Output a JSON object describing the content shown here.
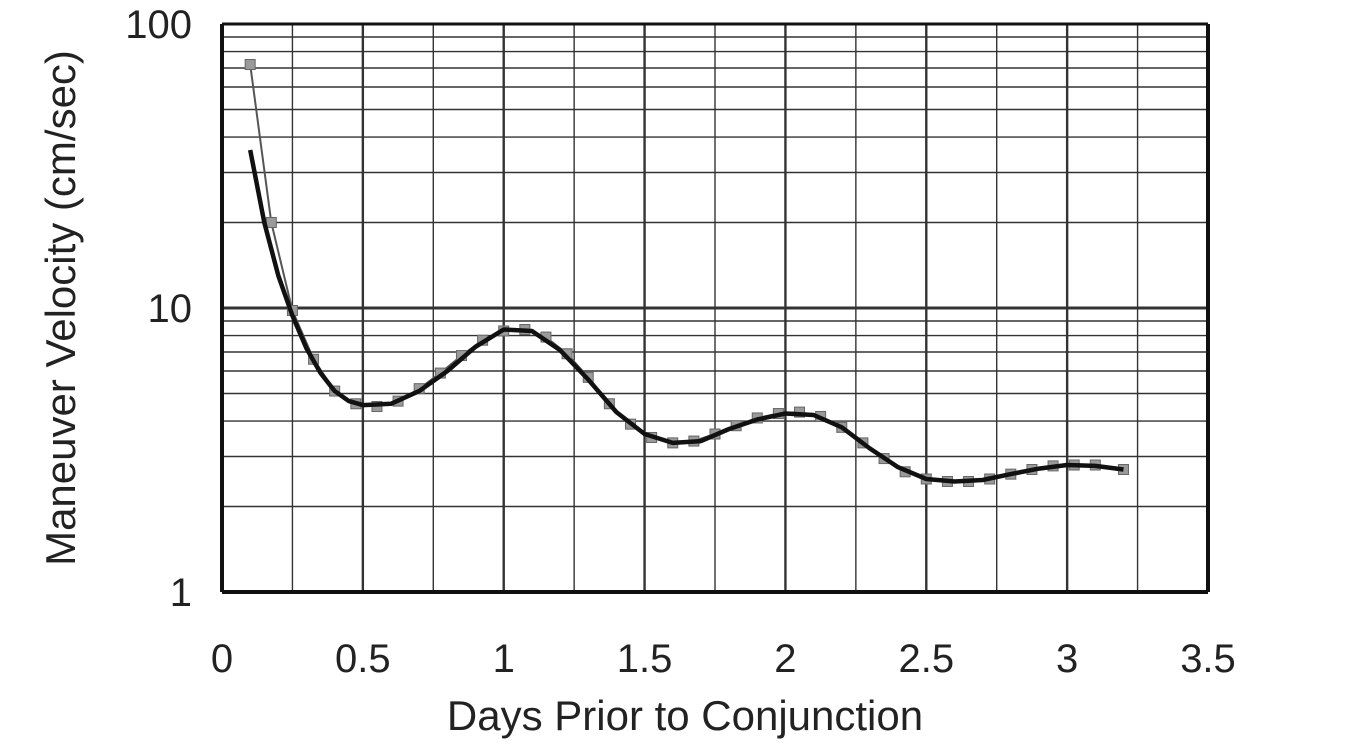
{
  "chart_data": {
    "type": "line",
    "title": "",
    "xlabel": "Days Prior to Conjunction",
    "ylabel": "Maneuver Velocity (cm/sec)",
    "xlim": [
      0,
      3.5
    ],
    "ylim": [
      1,
      100
    ],
    "yscale": "log",
    "grid": true,
    "legend": "none",
    "x_ticks": [
      "0",
      "0.5",
      "1",
      "1.5",
      "2",
      "2.5",
      "3",
      "3.5"
    ],
    "y_ticks": [
      "1",
      "10",
      "100"
    ],
    "series": [
      {
        "marker": "square",
        "color": "#555555",
        "points": [
          [
            0.1,
            72
          ],
          [
            0.175,
            20
          ],
          [
            0.25,
            9.8
          ],
          [
            0.325,
            6.6
          ],
          [
            0.4,
            5.1
          ],
          [
            0.475,
            4.6
          ],
          [
            0.55,
            4.5
          ],
          [
            0.625,
            4.7
          ],
          [
            0.7,
            5.2
          ],
          [
            0.775,
            5.9
          ],
          [
            0.85,
            6.8
          ],
          [
            0.925,
            7.7
          ],
          [
            1.0,
            8.3
          ],
          [
            1.075,
            8.4
          ],
          [
            1.15,
            7.9
          ],
          [
            1.225,
            6.9
          ],
          [
            1.3,
            5.7
          ],
          [
            1.375,
            4.6
          ],
          [
            1.45,
            3.9
          ],
          [
            1.525,
            3.5
          ],
          [
            1.6,
            3.35
          ],
          [
            1.675,
            3.4
          ],
          [
            1.75,
            3.6
          ],
          [
            1.825,
            3.85
          ],
          [
            1.9,
            4.1
          ],
          [
            1.975,
            4.25
          ],
          [
            2.05,
            4.3
          ],
          [
            2.125,
            4.15
          ],
          [
            2.2,
            3.8
          ],
          [
            2.275,
            3.35
          ],
          [
            2.35,
            2.95
          ],
          [
            2.425,
            2.65
          ],
          [
            2.5,
            2.5
          ],
          [
            2.575,
            2.45
          ],
          [
            2.65,
            2.45
          ],
          [
            2.725,
            2.5
          ],
          [
            2.8,
            2.6
          ],
          [
            2.875,
            2.7
          ],
          [
            2.95,
            2.78
          ],
          [
            3.025,
            2.8
          ],
          [
            3.1,
            2.8
          ],
          [
            3.2,
            2.7
          ]
        ]
      },
      {
        "marker": "none",
        "color": "#111111",
        "points": [
          [
            0.1,
            36
          ],
          [
            0.15,
            20
          ],
          [
            0.2,
            13
          ],
          [
            0.25,
            9.4
          ],
          [
            0.3,
            7.2
          ],
          [
            0.35,
            5.9
          ],
          [
            0.4,
            5.1
          ],
          [
            0.45,
            4.7
          ],
          [
            0.5,
            4.55
          ],
          [
            0.6,
            4.6
          ],
          [
            0.7,
            5.1
          ],
          [
            0.8,
            6.0
          ],
          [
            0.9,
            7.3
          ],
          [
            1.0,
            8.4
          ],
          [
            1.1,
            8.3
          ],
          [
            1.2,
            7.1
          ],
          [
            1.3,
            5.6
          ],
          [
            1.4,
            4.3
          ],
          [
            1.5,
            3.6
          ],
          [
            1.6,
            3.35
          ],
          [
            1.7,
            3.4
          ],
          [
            1.8,
            3.75
          ],
          [
            1.9,
            4.05
          ],
          [
            2.0,
            4.25
          ],
          [
            2.1,
            4.2
          ],
          [
            2.2,
            3.8
          ],
          [
            2.3,
            3.2
          ],
          [
            2.4,
            2.75
          ],
          [
            2.5,
            2.5
          ],
          [
            2.6,
            2.45
          ],
          [
            2.7,
            2.48
          ],
          [
            2.8,
            2.6
          ],
          [
            2.9,
            2.72
          ],
          [
            3.0,
            2.8
          ],
          [
            3.1,
            2.78
          ],
          [
            3.2,
            2.7
          ]
        ]
      }
    ]
  }
}
